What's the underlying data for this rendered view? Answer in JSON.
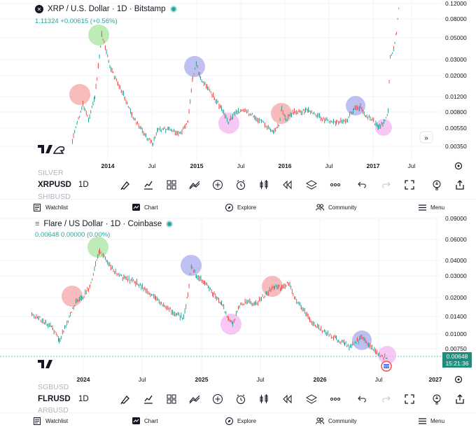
{
  "top": {
    "pair_title": "XRP / U.S. Dollar · 1D · Bitstamp",
    "quote": "1.11324 +0.00615 (+0.56%)",
    "symbol": "XRPUSD",
    "timeframe": "1D",
    "ghost_above": "SILVER",
    "ghost_below": "SHIBUSD",
    "y_ticks": [
      "0.12000",
      "0.08000",
      "0.05000",
      "0.03000",
      "0.02000",
      "0.01200",
      "0.00800",
      "0.00550",
      "0.00350"
    ],
    "x_ticks": [
      "2014",
      "Jul",
      "2015",
      "Jul",
      "2016",
      "Jul",
      "2017",
      "Jul"
    ]
  },
  "bottom": {
    "pair_title": "Flare / US Dollar · 1D · Coinbase",
    "quote": "0.00648 0.00000 (0.00%)",
    "symbol": "FLRUSD",
    "timeframe": "1D",
    "ghost_above": "SGBUSD",
    "ghost_below": "ARBUSD",
    "y_ticks": [
      "0.09000",
      "0.06000",
      "0.04000",
      "0.03000",
      "0.02000",
      "0.01400",
      "0.01000",
      "0.00750"
    ],
    "x_ticks": [
      "2024",
      "Jul",
      "2025",
      "Jul",
      "2026",
      "Jul",
      "2027"
    ],
    "last_price": "0.00648",
    "countdown": "15:21:36"
  },
  "nav": {
    "watchlist": "Watchlist",
    "chart": "Chart",
    "explore": "Explore",
    "community": "Community",
    "menu": "Menu"
  },
  "colors": {
    "up": "#26a69a",
    "down": "#ef5350",
    "highlight_red": "#f4a5a5",
    "highlight_green": "#a8e6a0",
    "highlight_blue": "#a9acee",
    "highlight_pink": "#f3b6ef"
  },
  "icons": [
    "brush-icon",
    "indicators-icon",
    "grid-icon",
    "compare-icon",
    "add-icon",
    "alert-clock-icon",
    "candles-icon",
    "replay-icon",
    "layers-icon",
    "more-icon",
    "undo-icon",
    "redo-icon",
    "fullscreen-icon",
    "lightbulb-icon",
    "share-icon"
  ]
}
